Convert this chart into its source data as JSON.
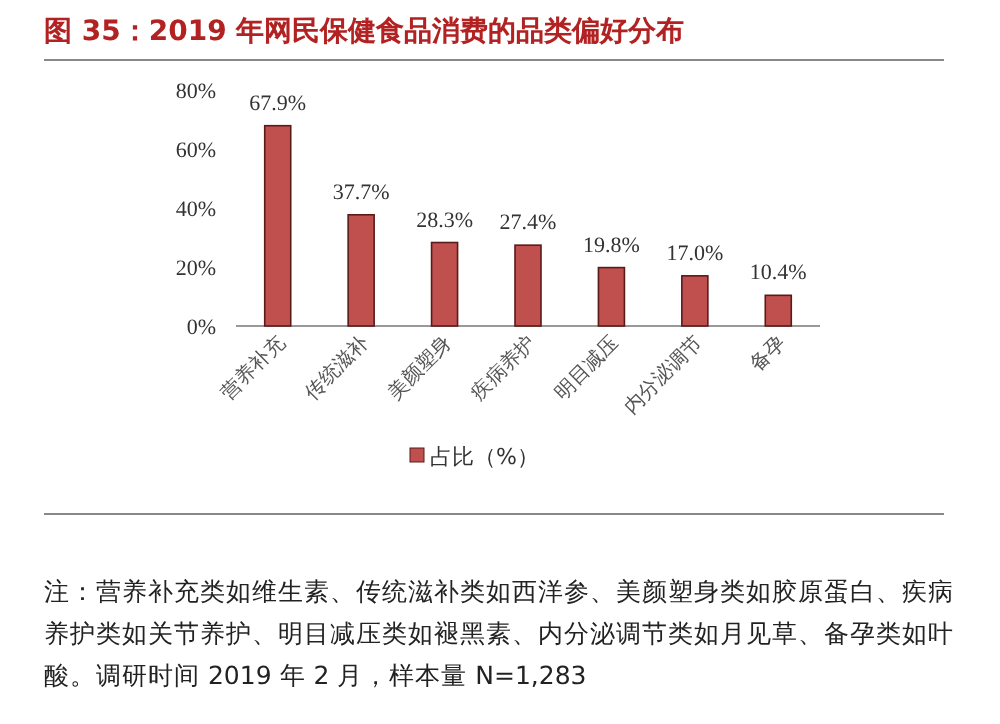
{
  "chart_data": {
    "type": "bar",
    "title": "图 35：2019 年网民保健食品消费的品类偏好分布",
    "categories": [
      "营养补充",
      "传统滋补",
      "美颜塑身",
      "疾病养护",
      "明目减压",
      "内分泌调节",
      "备孕"
    ],
    "series": [
      {
        "name": "占比（%）",
        "color": "#c0504d",
        "values": [
          67.9,
          37.7,
          28.3,
          27.4,
          19.8,
          17.0,
          10.4
        ],
        "value_labels": [
          "67.9%",
          "37.7%",
          "28.3%",
          "27.4%",
          "19.8%",
          "17.0%",
          "10.4%"
        ]
      }
    ],
    "ylim": [
      0,
      80
    ],
    "yticks": [
      {
        "value": 0,
        "label": "0%"
      },
      {
        "value": 20,
        "label": "20%"
      },
      {
        "value": 40,
        "label": "40%"
      },
      {
        "value": 60,
        "label": "60%"
      },
      {
        "value": 80,
        "label": "80%"
      }
    ],
    "legend": "bottom",
    "grid": false,
    "annotations": [
      "注：营养补充类如维生素、传统滋补类如西洋参、美颜塑身类如胶原蛋白、疾病养护类如关节养护、明目减压类如褪黑素、内分泌调节类如月见草、备孕类如叶酸。调研时间 2019 年 2 月，样本量 N=1,283"
    ]
  }
}
